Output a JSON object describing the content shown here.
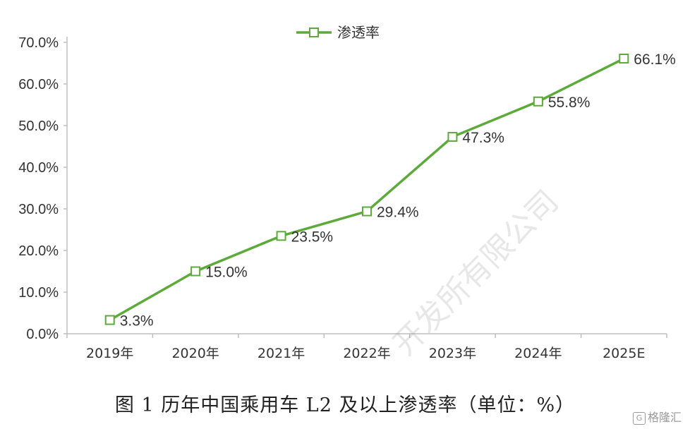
{
  "chart_data": {
    "type": "line",
    "categories": [
      "2019年",
      "2020年",
      "2021年",
      "2022年",
      "2023年",
      "2024年",
      "2025E"
    ],
    "series": [
      {
        "name": "渗透率",
        "values": [
          3.3,
          15.0,
          23.5,
          29.4,
          47.3,
          55.8,
          66.1
        ]
      }
    ],
    "data_labels": [
      "3.3%",
      "15.0%",
      "23.5%",
      "29.4%",
      "47.3%",
      "55.8%",
      "66.1%"
    ],
    "y_ticks": [
      "0.0%",
      "10.0%",
      "20.0%",
      "30.0%",
      "40.0%",
      "50.0%",
      "60.0%",
      "70.0%"
    ],
    "ylim": [
      0,
      70
    ],
    "grid": false,
    "legend_position": "top-center",
    "color": "#5cab3a",
    "caption": "图 1  历年中国乘用车 L2 及以上渗透率（单位：%）"
  },
  "watermark_text": "开发所有限公司",
  "brand_text": "格隆汇",
  "brand_icon": "G-logo-icon"
}
